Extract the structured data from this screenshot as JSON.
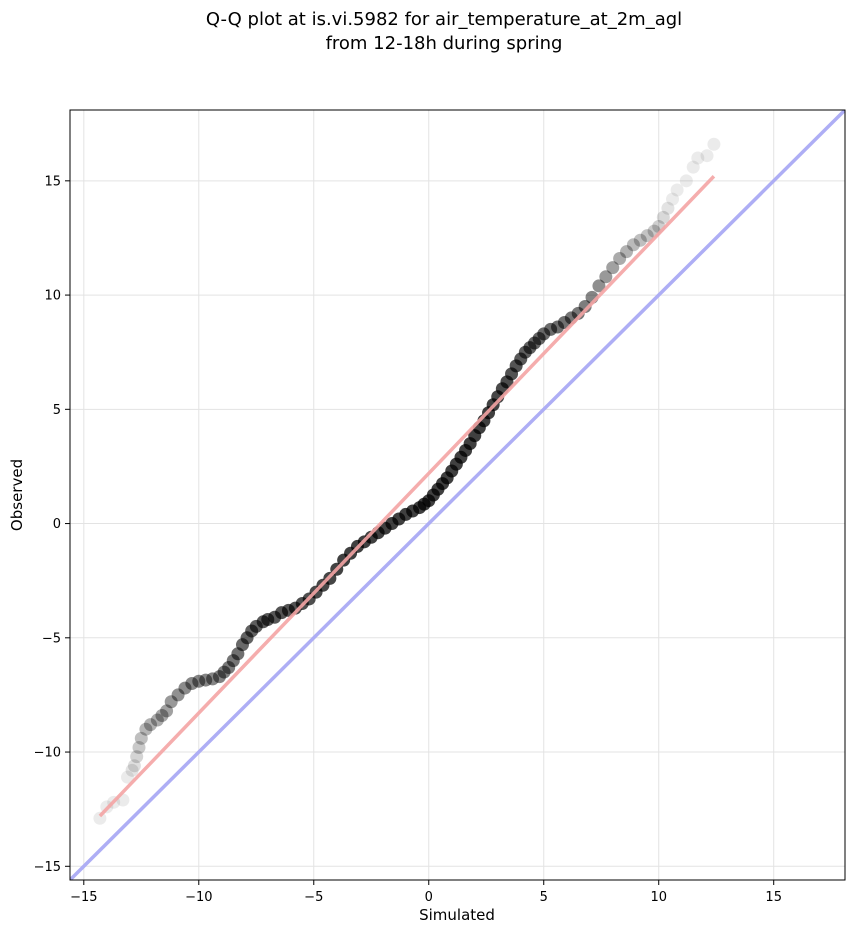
{
  "chart_data": {
    "type": "scatter",
    "title_line1": "Q-Q plot at is.vi.5982 for air_temperature_at_2m_agl",
    "title_line2": "from 12-18h during spring",
    "xlabel": "Simulated",
    "ylabel": "Observed",
    "xlim": [
      -15.6,
      18.1
    ],
    "ylim": [
      -15.6,
      18.1
    ],
    "xticks": [
      -15,
      -10,
      -5,
      0,
      5,
      10,
      15
    ],
    "yticks": [
      -15,
      -10,
      -5,
      0,
      5,
      10,
      15
    ],
    "xtick_labels": [
      "−15",
      "−10",
      "−5",
      "0",
      "5",
      "10",
      "15"
    ],
    "ytick_labels": [
      "−15",
      "−10",
      "−5",
      "0",
      "5",
      "10",
      "15"
    ],
    "grid": true,
    "identity_line": {
      "color": "#aaaaf4",
      "from": [
        -15.6,
        -15.6
      ],
      "to": [
        18.1,
        18.1
      ]
    },
    "fit_line": {
      "color": "#f4a4a4",
      "from": [
        -14.3,
        -12.8
      ],
      "to": [
        12.4,
        15.2
      ]
    },
    "marker_color": "#000000",
    "points_x": [
      -14.3,
      -14.0,
      -13.7,
      -13.3,
      -13.1,
      -12.9,
      -12.8,
      -12.7,
      -12.6,
      -12.5,
      -12.3,
      -12.1,
      -11.8,
      -11.6,
      -11.4,
      -11.2,
      -10.9,
      -10.6,
      -10.3,
      -10.0,
      -9.7,
      -9.4,
      -9.1,
      -8.9,
      -8.7,
      -8.5,
      -8.3,
      -8.1,
      -7.9,
      -7.7,
      -7.5,
      -7.2,
      -7.0,
      -6.7,
      -6.4,
      -6.1,
      -5.8,
      -5.5,
      -5.2,
      -4.9,
      -4.6,
      -4.3,
      -4.0,
      -3.7,
      -3.4,
      -3.1,
      -2.8,
      -2.5,
      -2.2,
      -1.9,
      -1.6,
      -1.3,
      -1.0,
      -0.7,
      -0.4,
      -0.2,
      0.0,
      0.2,
      0.4,
      0.6,
      0.8,
      1.0,
      1.2,
      1.4,
      1.6,
      1.8,
      2.0,
      2.2,
      2.4,
      2.6,
      2.8,
      3.0,
      3.2,
      3.4,
      3.6,
      3.8,
      4.0,
      4.2,
      4.4,
      4.6,
      4.8,
      5.0,
      5.3,
      5.6,
      5.9,
      6.2,
      6.5,
      6.8,
      7.1,
      7.4,
      7.7,
      8.0,
      8.3,
      8.6,
      8.9,
      9.2,
      9.5,
      9.8,
      10.0,
      10.2,
      10.4,
      10.6,
      10.8,
      11.2,
      11.5,
      11.7,
      12.1,
      12.4
    ],
    "points_y": [
      -12.9,
      -12.4,
      -12.2,
      -12.1,
      -11.1,
      -10.8,
      -10.6,
      -10.2,
      -9.8,
      -9.4,
      -9.0,
      -8.8,
      -8.6,
      -8.4,
      -8.2,
      -7.8,
      -7.5,
      -7.2,
      -7.0,
      -6.9,
      -6.85,
      -6.8,
      -6.7,
      -6.5,
      -6.3,
      -6.0,
      -5.7,
      -5.3,
      -5.0,
      -4.7,
      -4.5,
      -4.3,
      -4.2,
      -4.1,
      -3.9,
      -3.8,
      -3.7,
      -3.5,
      -3.3,
      -3.0,
      -2.7,
      -2.4,
      -2.0,
      -1.6,
      -1.3,
      -1.0,
      -0.8,
      -0.6,
      -0.4,
      -0.2,
      0.0,
      0.2,
      0.4,
      0.55,
      0.7,
      0.85,
      1.0,
      1.25,
      1.5,
      1.75,
      2.0,
      2.3,
      2.6,
      2.9,
      3.2,
      3.5,
      3.85,
      4.2,
      4.5,
      4.85,
      5.2,
      5.55,
      5.9,
      6.2,
      6.55,
      6.9,
      7.2,
      7.5,
      7.7,
      7.9,
      8.1,
      8.3,
      8.5,
      8.6,
      8.8,
      9.0,
      9.2,
      9.5,
      9.9,
      10.4,
      10.8,
      11.2,
      11.6,
      11.9,
      12.2,
      12.4,
      12.6,
      12.8,
      13.0,
      13.4,
      13.8,
      14.2,
      14.6,
      15.0,
      15.6,
      16.0,
      16.1,
      16.6
    ]
  }
}
